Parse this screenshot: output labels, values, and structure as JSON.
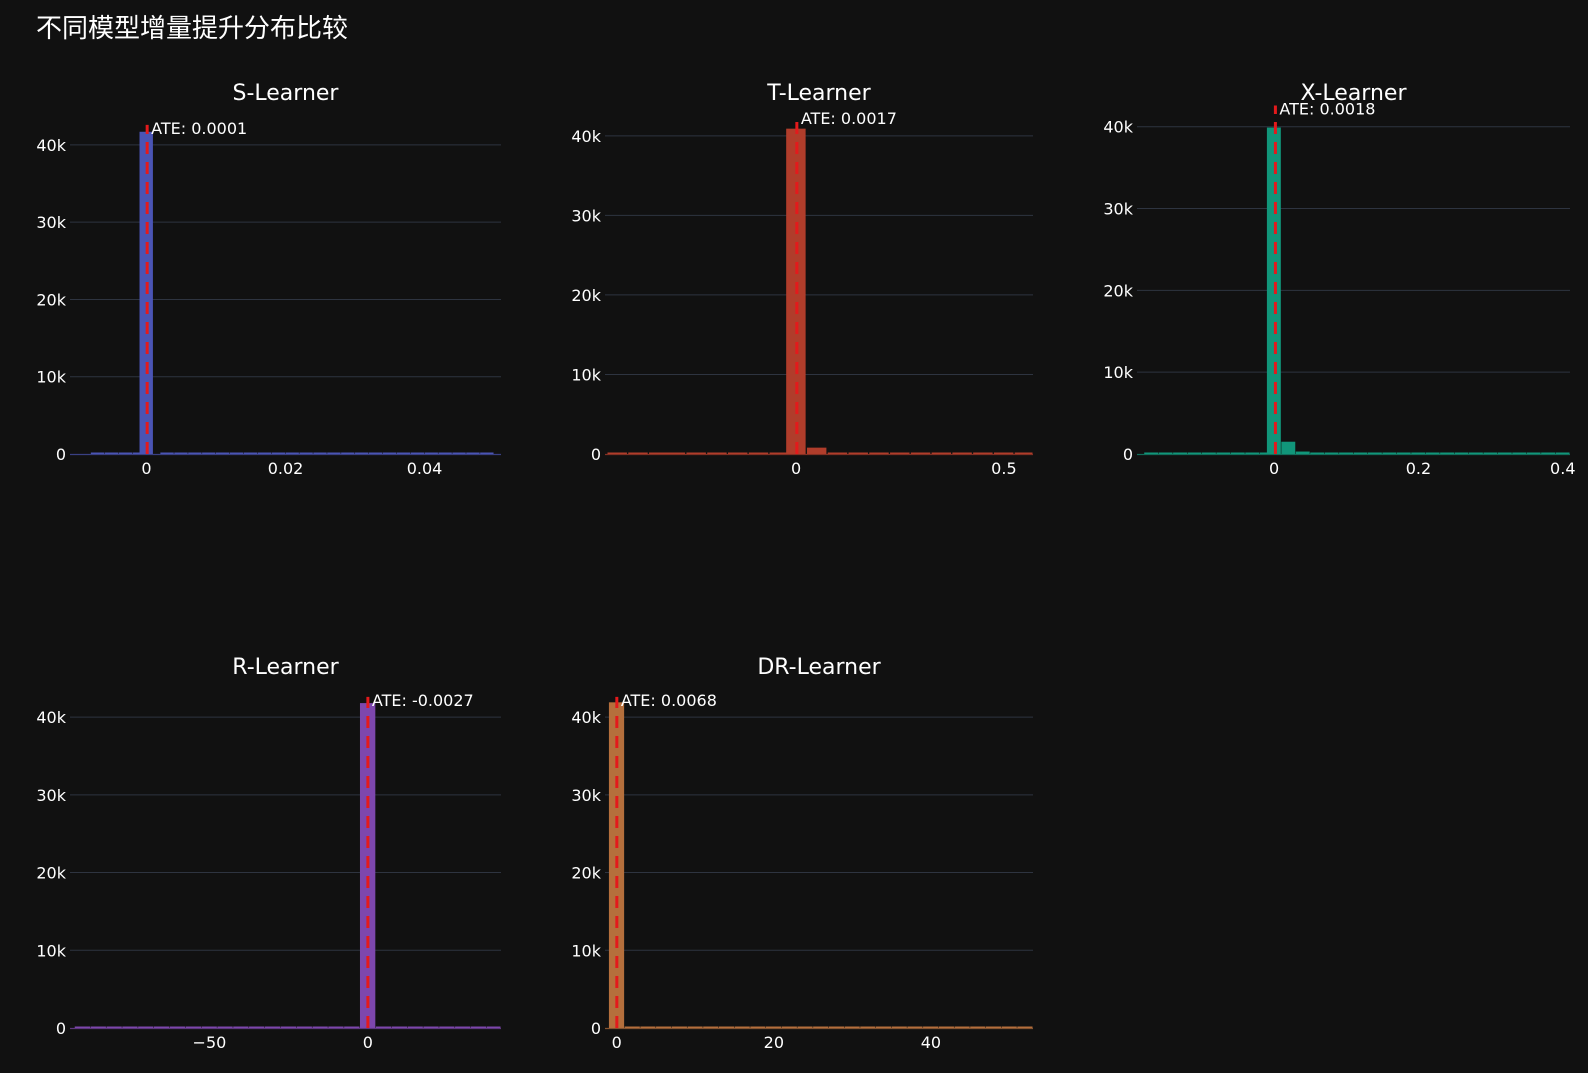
{
  "figure": {
    "title": "不同模型增量提升分布比较",
    "background": "#111111",
    "grid_color": "#2e3440",
    "ate_line_color": "#e31a1c"
  },
  "chart_data": [
    {
      "type": "bar",
      "title": "S-Learner",
      "color": "#4a54b4",
      "xlim": [
        -0.011,
        0.051
      ],
      "ylim": [
        0,
        44000
      ],
      "xticks": [
        0,
        0.02,
        0.04
      ],
      "xtick_labels": [
        "0",
        "0.02",
        "0.04"
      ],
      "yticks": [
        0,
        10000,
        20000,
        30000,
        40000
      ],
      "ytick_labels": [
        "0",
        "10k",
        "20k",
        "30k",
        "40k"
      ],
      "bin_width": 0.002,
      "bin_centers": [
        -0.007,
        -0.005,
        -0.003,
        -0.001,
        0.0,
        0.003,
        0.005,
        0.007,
        0.009,
        0.011,
        0.013,
        0.015,
        0.017,
        0.019,
        0.021,
        0.023,
        0.025,
        0.027,
        0.029,
        0.031,
        0.033,
        0.035,
        0.037,
        0.039,
        0.041,
        0.043,
        0.045,
        0.047,
        0.049
      ],
      "values": [
        2,
        3,
        5,
        10,
        41700,
        60,
        30,
        20,
        15,
        10,
        8,
        6,
        5,
        4,
        4,
        3,
        3,
        3,
        2,
        2,
        2,
        2,
        2,
        2,
        2,
        1,
        1,
        1,
        1
      ],
      "ate_value": 0.0001,
      "ate_label": "ATE: 0.0001"
    },
    {
      "type": "bar",
      "title": "T-Learner",
      "color": "#b03d2b",
      "xlim": [
        -0.46,
        0.57
      ],
      "ylim": [
        0,
        44000
      ],
      "xticks": [
        0,
        0.5
      ],
      "xtick_labels": [
        "0",
        "0.5"
      ],
      "yticks": [
        0,
        10000,
        20000,
        30000,
        40000
      ],
      "ytick_labels": [
        "0",
        "10k",
        "20k",
        "30k",
        "40k"
      ],
      "bin_width": 0.048,
      "bin_centers": [
        -0.43,
        -0.38,
        -0.33,
        -0.29,
        -0.24,
        -0.19,
        -0.14,
        -0.09,
        -0.04,
        0.0,
        0.05,
        0.1,
        0.15,
        0.2,
        0.25,
        0.3,
        0.35,
        0.4,
        0.45,
        0.5,
        0.55
      ],
      "values": [
        3,
        4,
        6,
        8,
        10,
        15,
        25,
        50,
        120,
        40900,
        800,
        60,
        25,
        15,
        10,
        8,
        6,
        5,
        4,
        3,
        2
      ],
      "ate_value": 0.0017,
      "ate_label": "ATE: 0.0017"
    },
    {
      "type": "bar",
      "title": "X-Learner",
      "color": "#11967a",
      "xlim": [
        -0.19,
        0.41
      ],
      "ylim": [
        0,
        44000
      ],
      "xticks": [
        0,
        0.2,
        0.4
      ],
      "xtick_labels": [
        "0",
        "0.2",
        "0.4"
      ],
      "yticks": [
        0,
        10000,
        20000,
        30000,
        40000
      ],
      "ytick_labels": [
        "0",
        "10k",
        "20k",
        "30k",
        "40k"
      ],
      "bin_width": 0.02,
      "bin_centers": [
        -0.17,
        -0.15,
        -0.13,
        -0.11,
        -0.09,
        -0.07,
        -0.05,
        -0.03,
        -0.01,
        0.0,
        0.02,
        0.04,
        0.06,
        0.08,
        0.1,
        0.12,
        0.14,
        0.16,
        0.18,
        0.2,
        0.22,
        0.24,
        0.26,
        0.28,
        0.3,
        0.32,
        0.34,
        0.36,
        0.38,
        0.4
      ],
      "values": [
        2,
        3,
        3,
        4,
        5,
        8,
        12,
        20,
        60,
        39900,
        1500,
        300,
        80,
        40,
        25,
        15,
        10,
        8,
        6,
        5,
        4,
        3,
        3,
        2,
        2,
        2,
        2,
        1,
        1,
        1
      ],
      "ate_value": 0.0018,
      "ate_label": "ATE: 0.0018"
    },
    {
      "type": "bar",
      "title": "R-Learner",
      "color": "#7d47ad",
      "xlim": [
        -94,
        42
      ],
      "ylim": [
        0,
        44000
      ],
      "xticks": [
        -50,
        0
      ],
      "xtick_labels": [
        "−50",
        "0"
      ],
      "yticks": [
        0,
        10000,
        20000,
        30000,
        40000
      ],
      "ytick_labels": [
        "0",
        "10k",
        "20k",
        "30k",
        "40k"
      ],
      "bin_width": 5,
      "bin_centers": [
        -90,
        -85,
        -80,
        -75,
        -70,
        -65,
        -60,
        -55,
        -50,
        -45,
        -40,
        -35,
        -30,
        -25,
        -20,
        -15,
        -10,
        -5,
        0,
        5,
        10,
        15,
        20,
        25,
        30,
        35,
        40
      ],
      "values": [
        1,
        1,
        2,
        2,
        3,
        2,
        3,
        3,
        2,
        3,
        4,
        5,
        6,
        8,
        10,
        15,
        25,
        60,
        41800,
        80,
        30,
        15,
        8,
        5,
        4,
        3,
        2
      ],
      "ate_value": -0.0027,
      "ate_label": "ATE: -0.0027"
    },
    {
      "type": "bar",
      "title": "DR-Learner",
      "color": "#b56f3c",
      "xlim": [
        -1.5,
        53
      ],
      "ylim": [
        0,
        44000
      ],
      "xticks": [
        0,
        20,
        40
      ],
      "xtick_labels": [
        "0",
        "20",
        "40"
      ],
      "yticks": [
        0,
        10000,
        20000,
        30000,
        40000
      ],
      "ytick_labels": [
        "0",
        "10k",
        "20k",
        "30k",
        "40k"
      ],
      "bin_width": 2,
      "bin_centers": [
        0,
        2,
        4,
        6,
        8,
        10,
        12,
        14,
        16,
        18,
        20,
        22,
        24,
        26,
        28,
        30,
        32,
        34,
        36,
        38,
        40,
        42,
        44,
        46,
        48,
        50,
        52
      ],
      "values": [
        41900,
        120,
        40,
        20,
        12,
        8,
        6,
        5,
        4,
        3,
        3,
        3,
        2,
        2,
        2,
        2,
        2,
        2,
        1,
        1,
        1,
        1,
        1,
        1,
        1,
        1,
        1
      ],
      "ate_value": 0.0068,
      "ate_label": "ATE: 0.0068"
    }
  ]
}
